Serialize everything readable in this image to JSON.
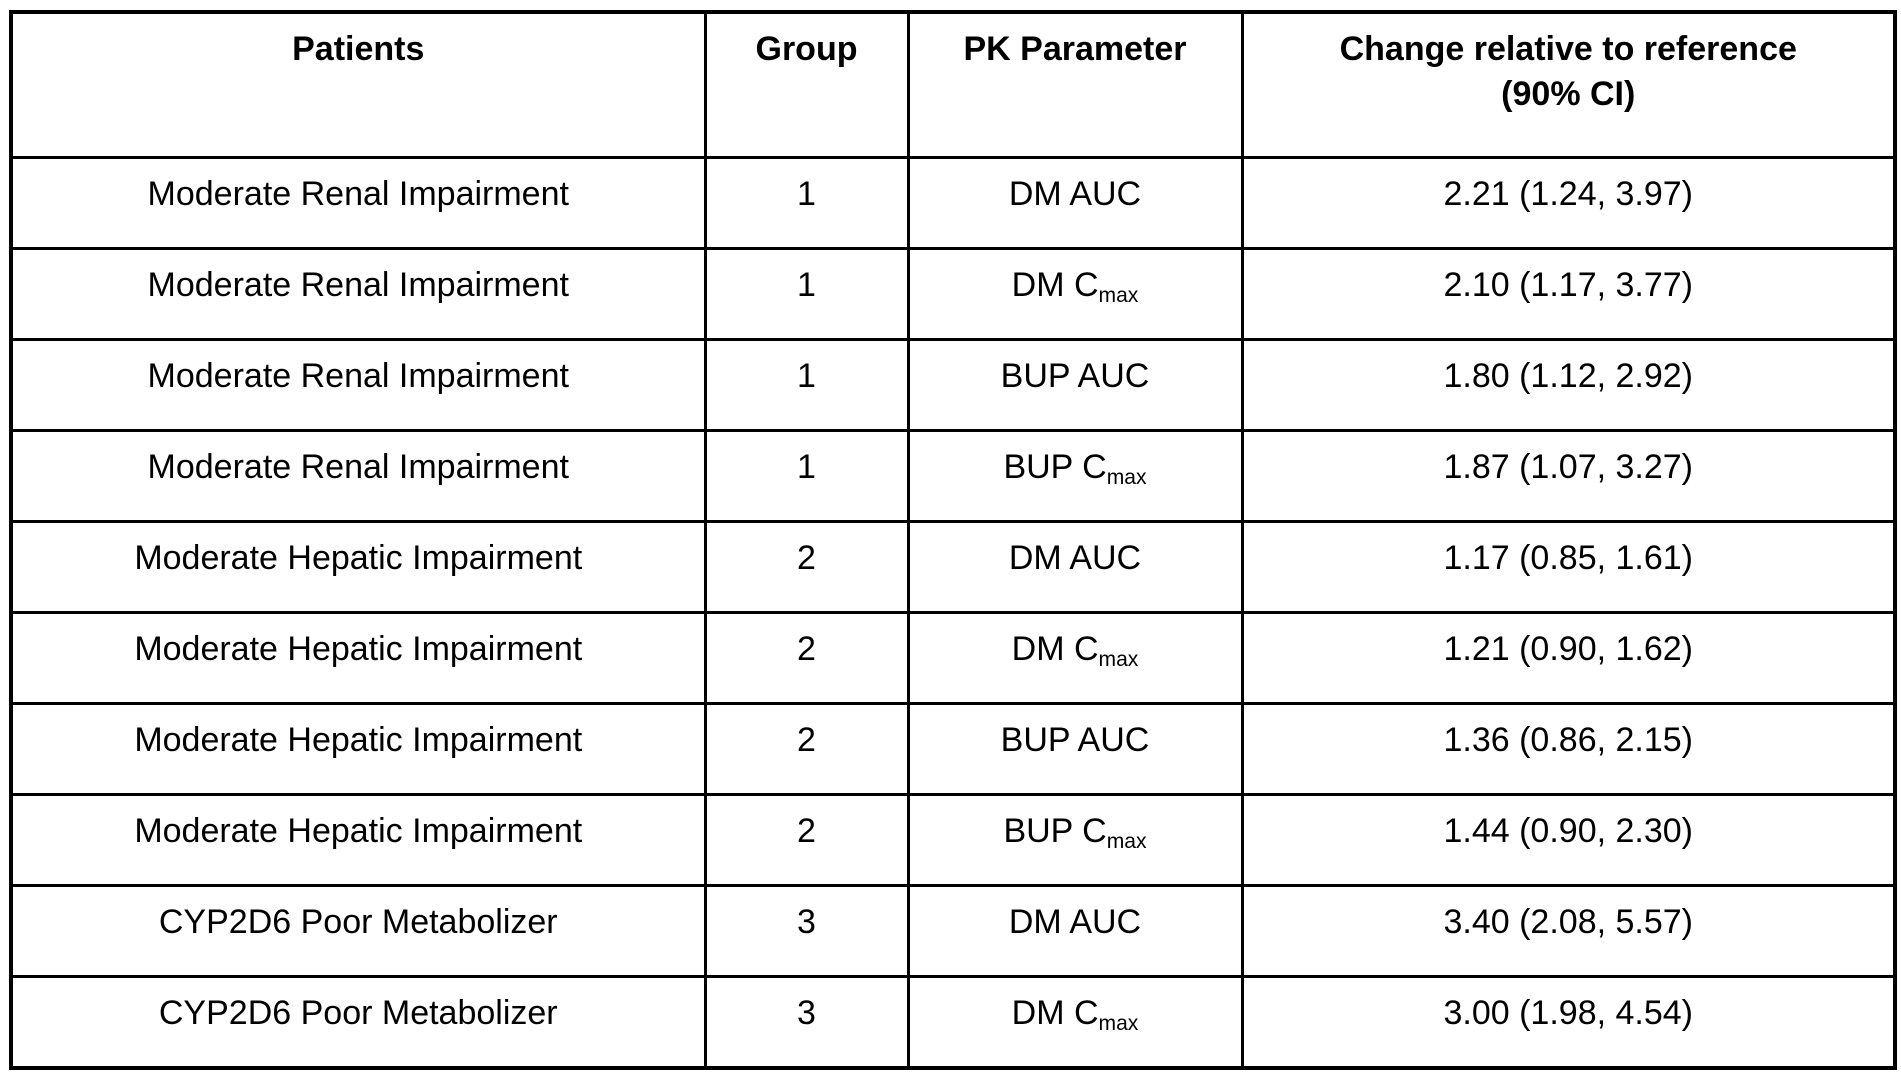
{
  "page": {
    "background_color": "#ffffff"
  },
  "table": {
    "border_color": "#000000",
    "text_color": "#000000",
    "headers": {
      "patients": "Patients",
      "group": "Group",
      "pk_parameter": "PK Parameter",
      "change_line1": "Change relative to reference",
      "change_line2": "(90% CI)"
    },
    "rows": [
      {
        "patients": "Moderate Renal Impairment",
        "group": "1",
        "pk_main": "DM AUC",
        "pk_sub": "",
        "change": "2.21 (1.24, 3.97)"
      },
      {
        "patients": "Moderate Renal Impairment",
        "group": "1",
        "pk_main": "DM C",
        "pk_sub": "max",
        "change": "2.10 (1.17, 3.77)"
      },
      {
        "patients": "Moderate Renal Impairment",
        "group": "1",
        "pk_main": "BUP AUC",
        "pk_sub": "",
        "change": "1.80 (1.12, 2.92)"
      },
      {
        "patients": "Moderate Renal Impairment",
        "group": "1",
        "pk_main": "BUP C",
        "pk_sub": "max",
        "change": "1.87 (1.07, 3.27)"
      },
      {
        "patients": "Moderate Hepatic Impairment",
        "group": "2",
        "pk_main": "DM AUC",
        "pk_sub": "",
        "change": "1.17 (0.85, 1.61)"
      },
      {
        "patients": "Moderate Hepatic Impairment",
        "group": "2",
        "pk_main": "DM C",
        "pk_sub": "max",
        "change": "1.21 (0.90, 1.62)"
      },
      {
        "patients": "Moderate Hepatic Impairment",
        "group": "2",
        "pk_main": "BUP AUC",
        "pk_sub": "",
        "change": "1.36 (0.86, 2.15)"
      },
      {
        "patients": "Moderate Hepatic Impairment",
        "group": "2",
        "pk_main": "BUP C",
        "pk_sub": "max",
        "change": "1.44 (0.90, 2.30)"
      },
      {
        "patients": "CYP2D6 Poor Metabolizer",
        "group": "3",
        "pk_main": "DM AUC",
        "pk_sub": "",
        "change": "3.40 (2.08, 5.57)"
      },
      {
        "patients": "CYP2D6 Poor Metabolizer",
        "group": "3",
        "pk_main": "DM C",
        "pk_sub": "max",
        "change": "3.00 (1.98, 4.54)"
      }
    ]
  }
}
